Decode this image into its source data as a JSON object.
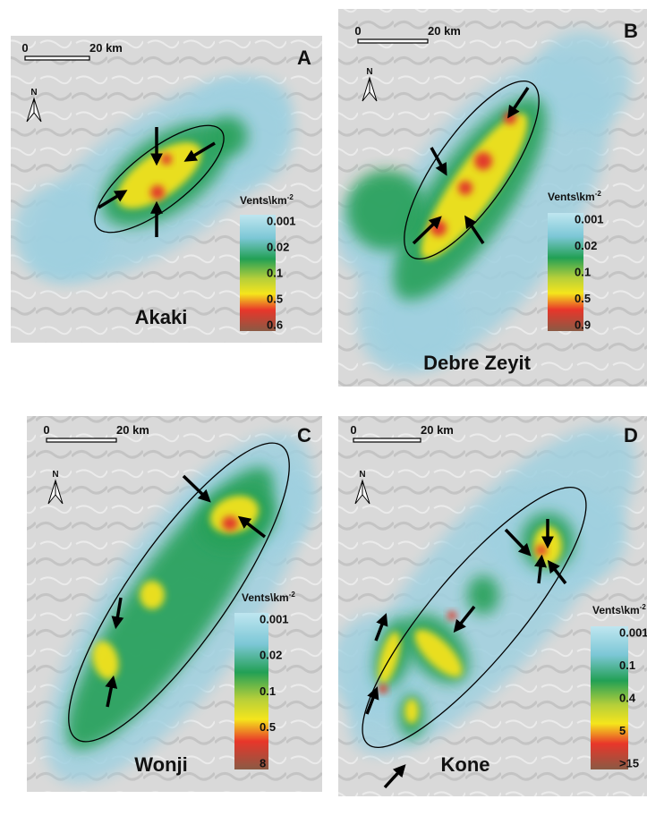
{
  "panels": [
    {
      "letter": "A",
      "name": "Akaki",
      "scale_labels": [
        "0",
        "20 km"
      ],
      "north": "N",
      "legend_title": "Vents\\km",
      "legend_title_sup": "-2",
      "legend_labels": [
        "0.001",
        "0.02",
        "0.1",
        "0.5",
        "0.6"
      ]
    },
    {
      "letter": "B",
      "name": "Debre Zeyit",
      "scale_labels": [
        "0",
        "20 km"
      ],
      "north": "N",
      "legend_title": "Vents\\km",
      "legend_title_sup": "-2",
      "legend_labels": [
        "0.001",
        "0.02",
        "0.1",
        "0.5",
        "0.9"
      ]
    },
    {
      "letter": "C",
      "name": "Wonji",
      "scale_labels": [
        "0",
        "20 km"
      ],
      "north": "N",
      "legend_title": "Vents\\km",
      "legend_title_sup": "-2",
      "legend_labels": [
        "0.001",
        "0.02",
        "0.1",
        "0.5",
        "8"
      ]
    },
    {
      "letter": "D",
      "name": "Kone",
      "scale_labels": [
        "0",
        "20 km"
      ],
      "north": "N",
      "legend_title": "Vents\\km",
      "legend_title_sup": "-2",
      "legend_labels": [
        "0.001",
        "0.1",
        "0.4",
        "5",
        ">15"
      ]
    }
  ]
}
